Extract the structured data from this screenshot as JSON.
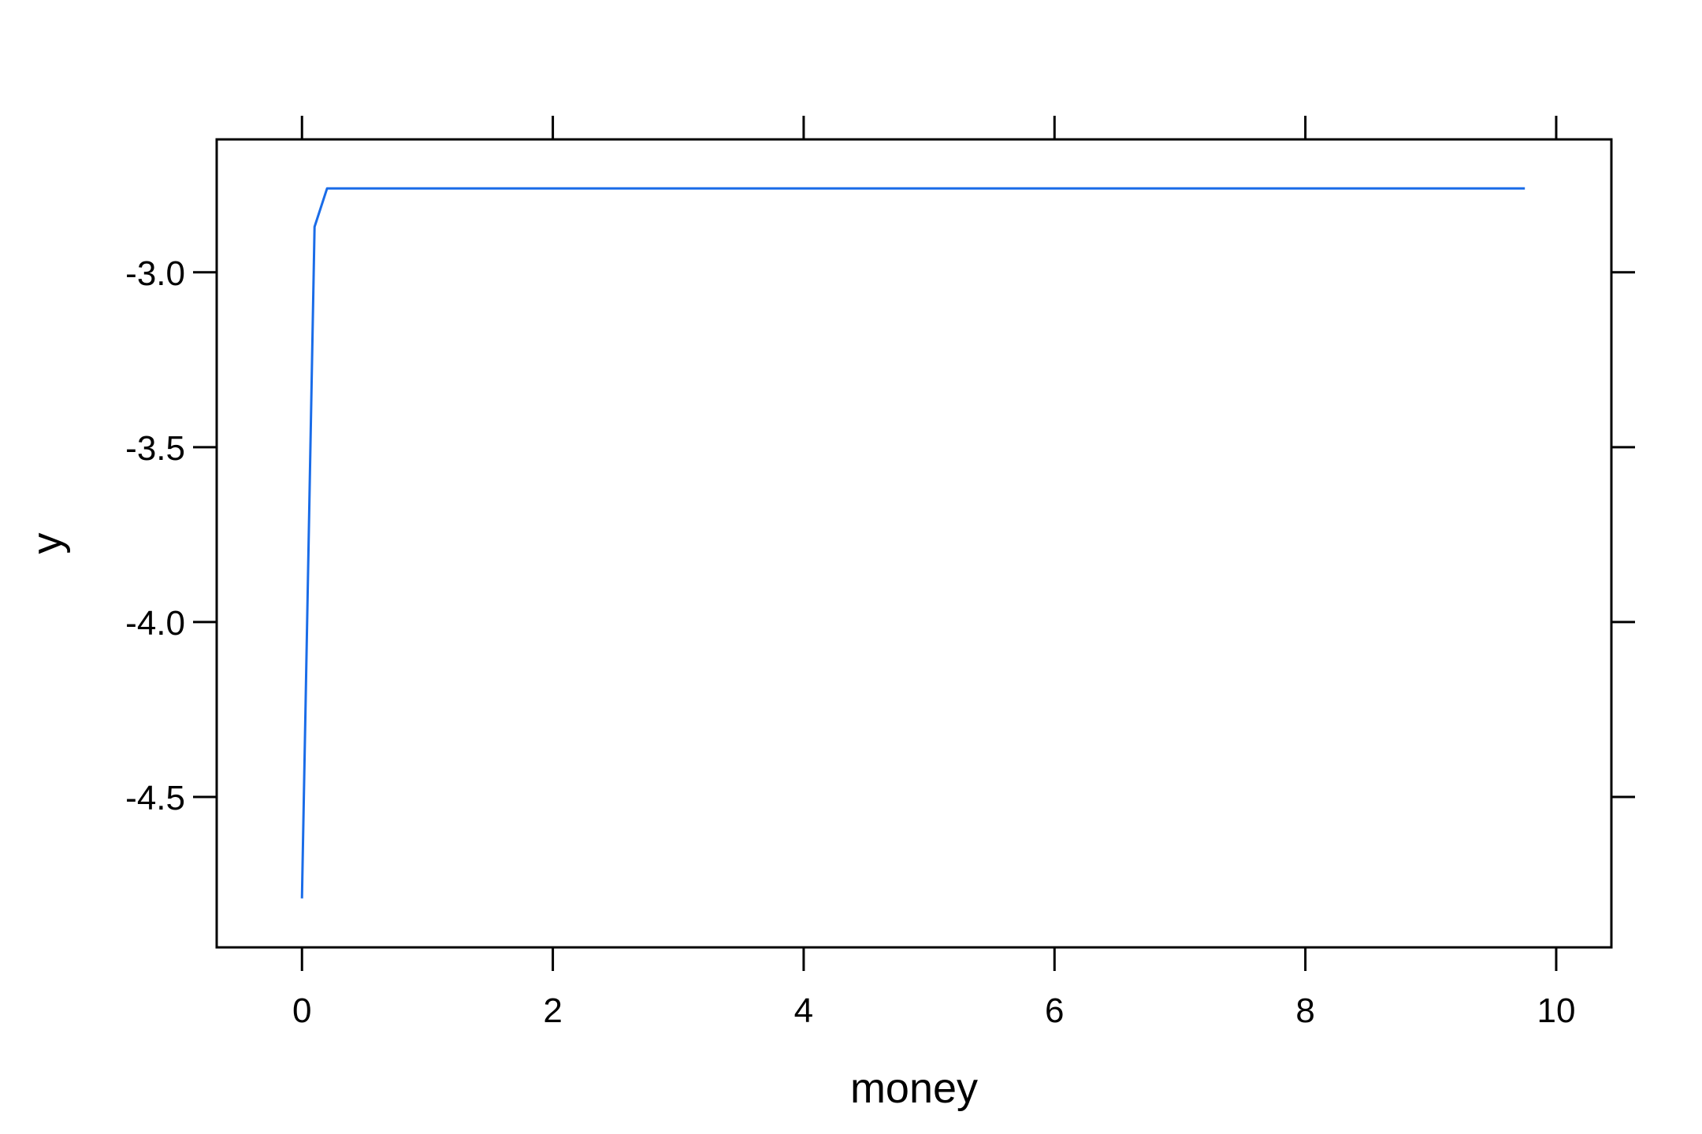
{
  "chart_data": {
    "type": "line",
    "title": "",
    "xlabel": "money",
    "ylabel": "y",
    "xlim": [
      -0.68,
      10.44
    ],
    "ylim": [
      -4.93,
      -2.62
    ],
    "x_ticks": [
      0,
      2,
      4,
      6,
      8,
      10
    ],
    "x_tick_labels": [
      "0",
      "2",
      "4",
      "6",
      "8",
      "10"
    ],
    "y_ticks": [
      -3.0,
      -3.5,
      -4.0,
      -4.5
    ],
    "y_tick_labels": [
      "-3.0",
      "-3.5",
      "-4.0",
      "-4.5"
    ],
    "grid": false,
    "legend": "none",
    "line_color": "#1a6ce8",
    "series": [
      {
        "x": [
          0,
          0.1,
          0.2,
          0.3,
          0.5,
          1,
          2,
          3,
          4,
          5,
          6,
          7,
          8,
          9,
          9.75
        ],
        "y": [
          -4.79,
          -2.87,
          -2.76,
          -2.76,
          -2.76,
          -2.76,
          -2.76,
          -2.76,
          -2.76,
          -2.76,
          -2.76,
          -2.76,
          -2.76,
          -2.76,
          -2.76
        ]
      }
    ]
  }
}
